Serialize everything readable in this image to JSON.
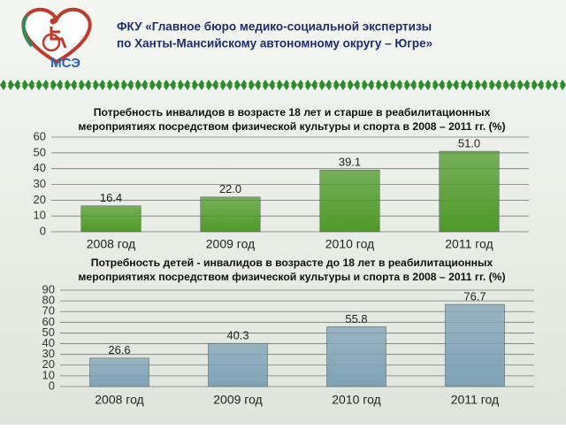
{
  "header": {
    "title": [
      "ФКУ «Главное бюро медико-социальной экспертизы",
      "по Ханты-Мансийскому автономному округу – Югре»"
    ],
    "logo_text": "МСЭ"
  },
  "chart_data": [
    {
      "type": "bar",
      "title": [
        "Потребность инвалидов в возрасте 18 лет и старше в реабилитационных",
        "мероприятиях посредством физической культуры и спорта в 2008 – 2011 гг. (%)"
      ],
      "categories": [
        "2008 год",
        "2009 год",
        "2010 год",
        "2011 год"
      ],
      "values": [
        16.4,
        22.0,
        39.1,
        51.0
      ],
      "value_labels": [
        "16.4",
        "22.0",
        "39.1",
        "51.0"
      ],
      "color": "#4f9a2a",
      "ylim": [
        0,
        60
      ],
      "yticks": [
        0,
        10,
        20,
        30,
        40,
        50,
        60
      ],
      "grid": true
    },
    {
      "type": "bar",
      "title": [
        "Потребность детей - инвалидов в возрасте до 18 лет в реабилитационных",
        "мероприятиях посредством физической культуры и спорта в 2008 – 2011 гг. (%)"
      ],
      "categories": [
        "2008 год",
        "2009 год",
        "2010 год",
        "2011 год"
      ],
      "values": [
        26.6,
        40.3,
        55.8,
        76.7
      ],
      "value_labels": [
        "26.6",
        "40.3",
        "55.8",
        "76.7"
      ],
      "color": "#7fa3b8",
      "ylim": [
        0,
        90
      ],
      "yticks": [
        0,
        10,
        20,
        30,
        40,
        50,
        60,
        70,
        80,
        90
      ],
      "grid": true
    }
  ]
}
